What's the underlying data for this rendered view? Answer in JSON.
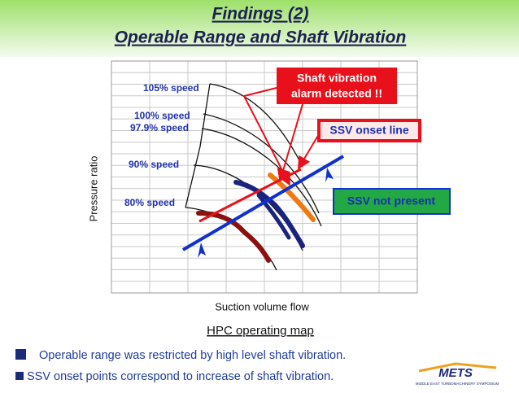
{
  "header": {
    "title": "Findings (2)",
    "subtitle": "Operable Range and Shaft Vibration"
  },
  "map": {
    "y_label": "Pressure ratio",
    "x_label": "Suction volume flow",
    "caption": "HPC operating map",
    "speed_labels": [
      "105% speed",
      "100% speed",
      "97.9% speed",
      "90% speed",
      "80% speed"
    ],
    "callouts": {
      "alarm": [
        "Shaft vibration",
        "alarm detected !!"
      ],
      "onset": "SSV onset line",
      "absent": "SSV not present"
    }
  },
  "bullets": [
    "Operable range was restricted by high level shaft vibration.",
    "SSV onset points correspond to increase of shaft vibration."
  ],
  "logo": {
    "name": "METS",
    "tagline": "MIDDLE EAST TURBOMACHINERY SYMPOSIUM"
  }
}
